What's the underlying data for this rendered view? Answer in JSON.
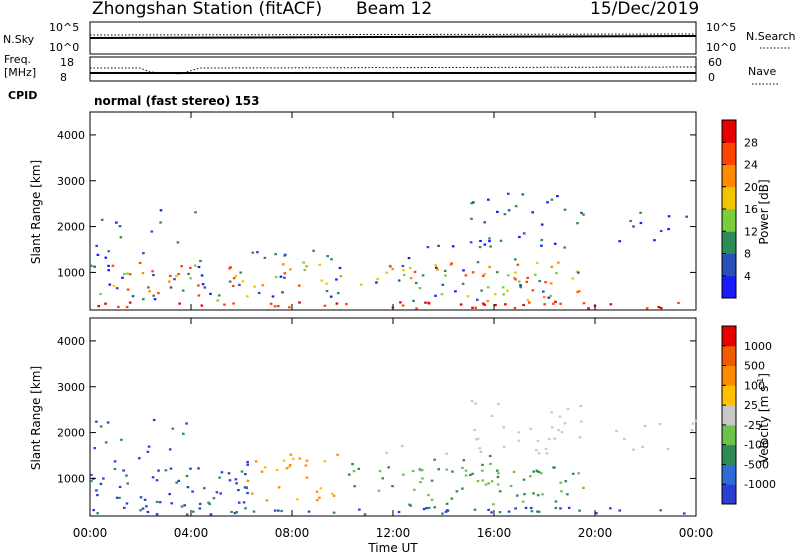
{
  "header": {
    "title": "Zhongshan Station (fitACF)",
    "beam": "Beam 12",
    "date": "15/Dec/2019"
  },
  "panels": {
    "nsky_label": "N.Sky",
    "nsearch_label": "N.Search",
    "nsky_ticks": [
      "10^5",
      "10^0"
    ],
    "nsearch_ticks": [
      "10^5",
      "10^0"
    ],
    "freq_label_line1": "Freq.",
    "freq_label_line2": "[MHz]",
    "freq_ticks": [
      "18",
      "8"
    ],
    "nave_label": "Nave",
    "nave_ticks": [
      "60",
      "0"
    ],
    "cpid_label": "CPID",
    "cpid_text": "normal (fast stereo) 153"
  },
  "chart_data": [
    {
      "type": "heatmap",
      "name": "power",
      "ylabel": "Slant Range [km]",
      "xlabel": "Time UT",
      "xticks": [
        "00:00",
        "04:00",
        "08:00",
        "12:00",
        "16:00",
        "20:00",
        "00:00"
      ],
      "yticks": [
        "1000",
        "2000",
        "3000",
        "4000"
      ],
      "ylim": [
        180,
        4500
      ],
      "xlim_hours": [
        0,
        24
      ],
      "colorbar": {
        "label": "Power [dB]",
        "ticks": [
          "4",
          "8",
          "12",
          "16",
          "20",
          "24",
          "28"
        ],
        "colors": [
          "#1a1aff",
          "#2b4fb8",
          "#2e8b57",
          "#7ccd3c",
          "#f2c500",
          "#ff8c00",
          "#ff4500",
          "#e60000"
        ]
      }
    },
    {
      "type": "heatmap",
      "name": "velocity",
      "ylabel": "Slant Range [km]",
      "xlabel": "Time UT",
      "xticks": [
        "00:00",
        "04:00",
        "08:00",
        "12:00",
        "16:00",
        "20:00",
        "00:00"
      ],
      "yticks": [
        "1000",
        "2000",
        "3000",
        "4000"
      ],
      "ylim": [
        180,
        4500
      ],
      "xlim_hours": [
        0,
        24
      ],
      "colorbar": {
        "label": "Velocity [m s",
        "label_sup": "-1",
        "label_end": "]",
        "ticks": [
          "1000",
          "500",
          "100",
          "25",
          "-25",
          "-100",
          "-500",
          "-1000"
        ],
        "colors": [
          "#2b3fd6",
          "#2e6bd6",
          "#2e8b57",
          "#6cc24a",
          "#c8c8c8",
          "#ffc000",
          "#ff8c00",
          "#f05a00",
          "#e60000"
        ]
      }
    }
  ]
}
